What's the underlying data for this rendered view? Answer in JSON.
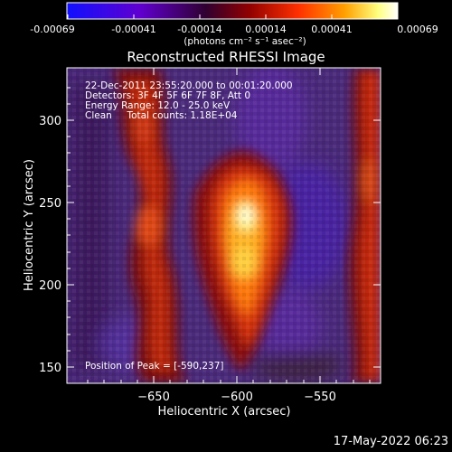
{
  "colorbar": {
    "tick_labels": [
      "-0.00069",
      "-0.00041",
      "-0.00014",
      "0.00014",
      "0.00041",
      "0.00069"
    ],
    "units": "(photons cm⁻² s⁻¹ asec⁻²)",
    "colors": [
      "#1010ff",
      "#5a00c8",
      "#2a0030",
      "#8a0000",
      "#ff2a00",
      "#ff9a00",
      "#ffff90",
      "#ffffff"
    ]
  },
  "plot": {
    "title": "Reconstructed RHESSI Image",
    "xlabel": "Heliocentric X (arcsec)",
    "ylabel": "Heliocentric Y (arcsec)",
    "xticks": [
      "−650",
      "−600",
      "−550"
    ],
    "yticks": [
      "300",
      "250",
      "200",
      "150"
    ],
    "info_lines": [
      "22-Dec-2011 23:55:20.000 to 00:01:20.000",
      "Detectors: 3F 4F 5F 6F 7F 8F, Att 0",
      "Energy Range: 12.0 - 25.0 keV",
      "Clean     Total counts: 1.18E+04"
    ],
    "peak_label": "Position of Peak = [-590,237]"
  },
  "footer": {
    "date": "17-May-2022 06:23"
  }
}
